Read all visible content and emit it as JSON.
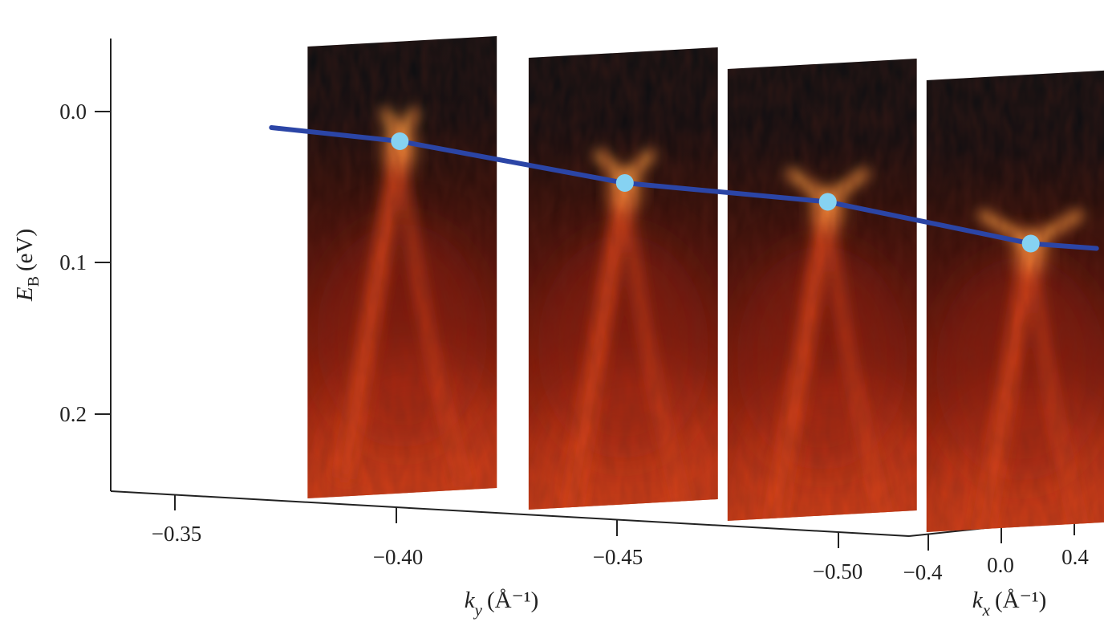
{
  "chart_data": {
    "type": "scatter",
    "panels": [
      {
        "ky": -0.38,
        "dirac_point_eV": 0.02
      },
      {
        "ky": -0.43,
        "dirac_point_eV": 0.04
      },
      {
        "ky": -0.475,
        "dirac_point_eV": 0.045
      },
      {
        "ky": -0.52,
        "dirac_point_eV": 0.065
      }
    ],
    "ylabel": {
      "symbol": "E",
      "subscript": "B",
      "unit": "(eV)"
    },
    "xlabel": {
      "symbol": "k",
      "subscript": "y",
      "unit": "(Å⁻¹)"
    },
    "zlabel": {
      "symbol": "k",
      "subscript": "x",
      "unit": "(Å⁻¹)"
    },
    "y_ticks": [
      "0.0",
      "0.1",
      "0.2"
    ],
    "x_ticks": [
      "−0.35",
      "−0.40",
      "−0.45",
      "−0.50"
    ],
    "z_ticks": [
      "−0.4",
      "0.0",
      "0.4"
    ],
    "colormap": [
      "#0b0f12",
      "#3a0d08",
      "#8e1c0c",
      "#d8421a",
      "#ff9a40"
    ],
    "line_color": "#2b45a6",
    "marker_color": "#86d2f2"
  }
}
